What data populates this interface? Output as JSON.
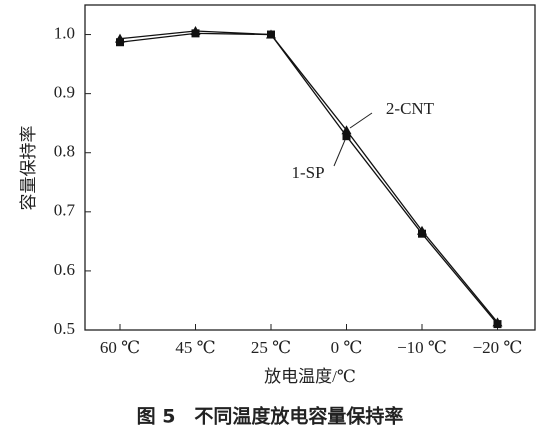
{
  "chart_data": {
    "type": "line",
    "categories": [
      "60 ℃",
      "45 ℃",
      "25 ℃",
      "0 ℃",
      "−10 ℃",
      "−20 ℃"
    ],
    "series": [
      {
        "name": "1-SP",
        "color": "#111111",
        "marker": "square",
        "values": [
          0.987,
          1.002,
          1.0,
          0.828,
          0.663,
          0.51
        ]
      },
      {
        "name": "2-CNT",
        "color": "#111111",
        "marker": "triangle",
        "values": [
          0.993,
          1.006,
          1.0,
          0.838,
          0.668,
          0.513
        ]
      }
    ],
    "ylim": [
      0.5,
      1.05
    ],
    "yticks": [
      0.5,
      0.6,
      0.7,
      0.8,
      0.9,
      {
        "value": 1,
        "label": "1.0"
      }
    ],
    "ylabel": "容量保持率",
    "xlabel": "放电温度/℃",
    "caption": "图 5　不同温度放电容量保持率"
  }
}
